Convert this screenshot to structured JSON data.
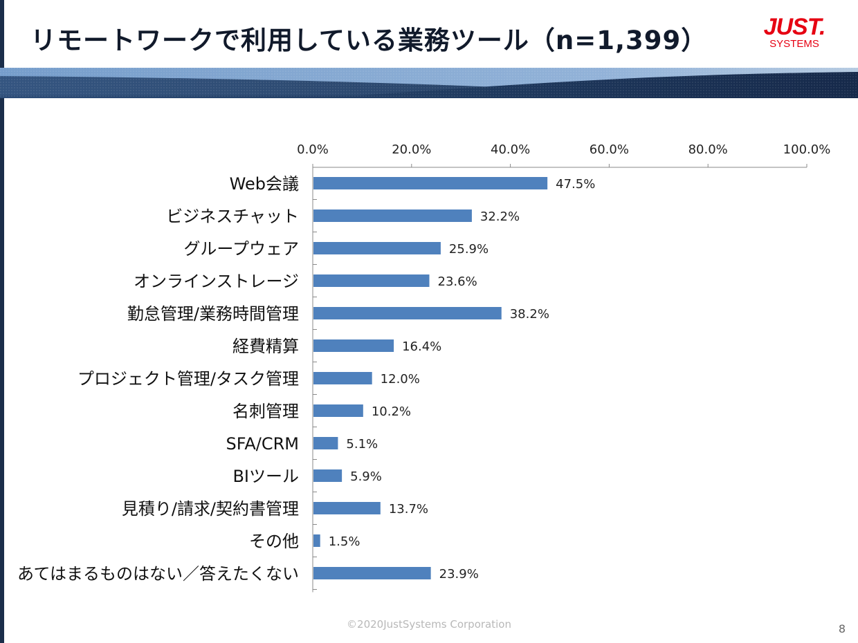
{
  "slide": {
    "title": "リモートワークで利用している業務ツール（n=1,399）",
    "logo_main": "JUST.",
    "logo_sub": "SYSTEMS",
    "footer": "©2020JustSystems Corporation",
    "page_number": "8"
  },
  "colors": {
    "bar": "#4f81bd",
    "axis": "#888888",
    "logo": "#e60012",
    "banner_dark": "#1f3a5f",
    "banner_light": "#8eb4df"
  },
  "chart_data": {
    "type": "bar",
    "orientation": "horizontal",
    "title": "",
    "xlabel": "",
    "ylabel": "",
    "xlim": [
      0,
      100
    ],
    "ticks": [
      0,
      20,
      40,
      60,
      80,
      100
    ],
    "tick_labels": [
      "0.0%",
      "20.0%",
      "40.0%",
      "60.0%",
      "80.0%",
      "100.0%"
    ],
    "tick_position": "top",
    "grid": false,
    "legend": "none",
    "categories": [
      "Web会議",
      "ビジネスチャット",
      "グループウェア",
      "オンラインストレージ",
      "勤怠管理/業務時間管理",
      "経費精算",
      "プロジェクト管理/タスク管理",
      "名刺管理",
      "SFA/CRM",
      "BIツール",
      "見積り/請求/契約書管理",
      "その他",
      "あてはまるものはない／答えたくない"
    ],
    "values": [
      47.5,
      32.2,
      25.9,
      23.6,
      38.2,
      16.4,
      12.0,
      10.2,
      5.1,
      5.9,
      13.7,
      1.5,
      23.9
    ],
    "value_labels": [
      "47.5%",
      "32.2%",
      "25.9%",
      "23.6%",
      "38.2%",
      "16.4%",
      "12.0%",
      "10.2%",
      "5.1%",
      "5.9%",
      "13.7%",
      "1.5%",
      "23.9%"
    ]
  }
}
